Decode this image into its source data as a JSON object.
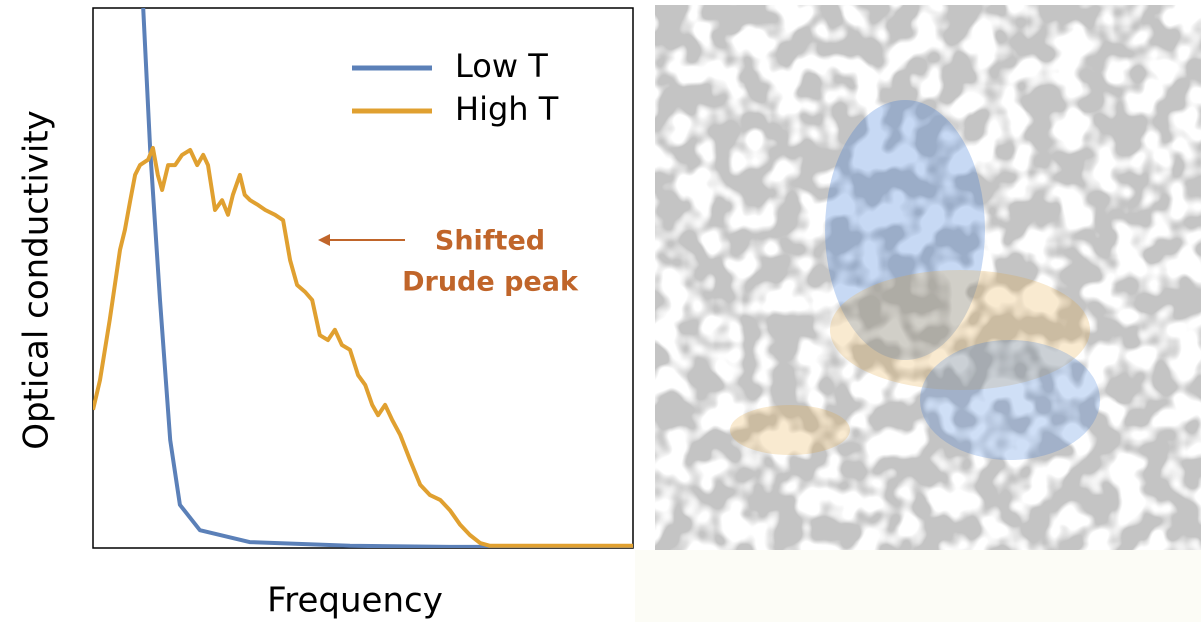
{
  "chart_data": {
    "type": "line",
    "y_label": "Optical conductivity",
    "x_label": "Frequency",
    "annotation": [
      "Shifted",
      "Drude peak"
    ],
    "annotation_color": "#c0652a",
    "xlim": [
      0,
      100
    ],
    "ylim": [
      0,
      100
    ],
    "legend": "top-right",
    "series": [
      {
        "name": "Low T",
        "color": "#5b80b8",
        "x": [
          9.3,
          10.6,
          12.4,
          14.3,
          16.1,
          19.8,
          29,
          47.6,
          66,
          100
        ],
        "values": [
          100,
          73.7,
          45.9,
          20,
          8,
          3.3,
          1.1,
          0.4,
          0.2,
          0.2
        ]
      },
      {
        "name": "High T",
        "color": "#e0a030",
        "x": [
          0,
          1.3,
          3.1,
          5.0,
          5.9,
          6.9,
          7.8,
          8.7,
          10.2,
          11.1,
          12.0,
          12.8,
          13.9,
          15.2,
          16.5,
          18.0,
          19.3,
          20.4,
          21.3,
          22.6,
          23.9,
          25.0,
          25.9,
          27.2,
          28.1,
          29.1,
          30.6,
          31.9,
          33.7,
          35.2,
          36.5,
          37.8,
          39.3,
          40.6,
          42.0,
          43.5,
          44.8,
          46.1,
          47.6,
          49.1,
          50.4,
          51.7,
          52.8,
          54.1,
          55.4,
          56.9,
          58.7,
          60.6,
          62.4,
          64.3,
          66.1,
          68.0,
          69.8,
          71.7,
          73.5,
          100
        ],
        "values": [
          25.6,
          31.1,
          42.2,
          55.2,
          58.9,
          64.4,
          69.1,
          70.9,
          71.9,
          74.1,
          69.1,
          66.3,
          70.9,
          70.9,
          72.8,
          73.7,
          70.9,
          72.8,
          70.9,
          62.6,
          64.4,
          61.7,
          65.4,
          69.1,
          65.4,
          64.4,
          63.5,
          62.6,
          61.7,
          60.7,
          53.3,
          48.7,
          47.4,
          45.9,
          39.4,
          38.5,
          40.4,
          37.6,
          36.7,
          32.0,
          30.2,
          26.5,
          24.6,
          26.5,
          23.7,
          20.9,
          16.3,
          11.7,
          9.8,
          8.9,
          7.0,
          4.3,
          2.4,
          0.9,
          0.4,
          0.4
        ]
      }
    ]
  }
}
